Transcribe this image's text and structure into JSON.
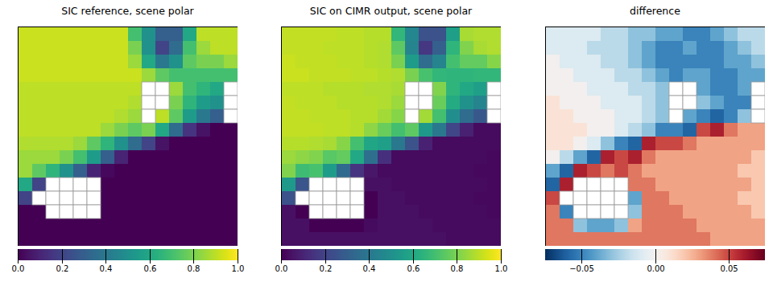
{
  "chart_data": [
    {
      "type": "heatmap",
      "title": "SIC reference, scene polar",
      "color": "viridis",
      "tick_labels": false,
      "colorbar": {
        "range": [
          0,
          1
        ],
        "ticks": [
          {
            "value": 0,
            "label": "0.0"
          },
          {
            "value": 0.2,
            "label": "0.2"
          },
          {
            "value": 0.4,
            "label": "0.4"
          },
          {
            "value": 0.6,
            "label": "0.6"
          },
          {
            "value": 0.8,
            "label": "0.8"
          },
          {
            "value": 1,
            "label": "1.0"
          }
        ]
      },
      "cells": [
        [
          0.92,
          0.92,
          0.92,
          0.92,
          0.92,
          0.92,
          0.92,
          0.92,
          0.7,
          0.5,
          0.3,
          0.3,
          0.6,
          0.9,
          0.9,
          0.9
        ],
        [
          0.92,
          0.92,
          0.92,
          0.92,
          0.92,
          0.92,
          0.92,
          0.92,
          0.8,
          0.5,
          0.2,
          0.35,
          0.7,
          0.85,
          0.9,
          0.9
        ],
        [
          0.92,
          0.92,
          0.92,
          0.92,
          0.92,
          0.92,
          0.92,
          0.92,
          0.85,
          0.6,
          0.4,
          0.5,
          0.75,
          0.8,
          0.8,
          0.85
        ],
        [
          0.92,
          0.92,
          0.92,
          0.92,
          0.92,
          0.92,
          0.92,
          0.92,
          0.92,
          0.85,
          0.75,
          0.7,
          0.7,
          0.7,
          0.7,
          0.7
        ],
        [
          0.9,
          0.9,
          0.9,
          0.9,
          0.9,
          0.9,
          0.9,
          0.9,
          0.9,
          null,
          null,
          0.85,
          0.7,
          0.65,
          0.6,
          null
        ],
        [
          0.9,
          0.9,
          0.9,
          0.9,
          0.9,
          0.9,
          0.9,
          0.9,
          0.88,
          null,
          null,
          0.8,
          0.65,
          0.55,
          0.5,
          null
        ],
        [
          0.9,
          0.9,
          0.9,
          0.9,
          0.9,
          0.9,
          0.9,
          0.88,
          0.85,
          null,
          0.9,
          0.75,
          0.55,
          0.4,
          0.3,
          null
        ],
        [
          0.9,
          0.9,
          0.9,
          0.9,
          0.9,
          0.9,
          0.85,
          0.8,
          0.75,
          0.8,
          0.6,
          0.35,
          0.15,
          0.05,
          0,
          0
        ],
        [
          0.88,
          0.88,
          0.88,
          0.88,
          0.85,
          0.75,
          0.65,
          0.5,
          0.35,
          0.2,
          0.05,
          0,
          0,
          0,
          0,
          0
        ],
        [
          0.85,
          0.85,
          0.85,
          0.8,
          0.7,
          0.55,
          0.3,
          0.1,
          0,
          0,
          0,
          0,
          0,
          0,
          0,
          0
        ],
        [
          0.85,
          0.75,
          0.65,
          0.5,
          0.3,
          0.1,
          0.02,
          0,
          0,
          0,
          0,
          0,
          0,
          0,
          0,
          0
        ],
        [
          0.6,
          0.2,
          null,
          null,
          null,
          null,
          0,
          0,
          0,
          0,
          0,
          0,
          0,
          0,
          0,
          0
        ],
        [
          0.2,
          null,
          null,
          null,
          null,
          null,
          0,
          0,
          0,
          0,
          0,
          0,
          0,
          0,
          0,
          0
        ],
        [
          0,
          0,
          null,
          null,
          null,
          null,
          0,
          0,
          0,
          0,
          0,
          0,
          0,
          0,
          0,
          0
        ],
        [
          0,
          0,
          0,
          0,
          0,
          0,
          0,
          0,
          0,
          0,
          0,
          0,
          0,
          0,
          0,
          0
        ],
        [
          0,
          0,
          0,
          0,
          0,
          0,
          0,
          0,
          0,
          0,
          0,
          0,
          0,
          0,
          0,
          0
        ]
      ]
    },
    {
      "type": "heatmap",
      "title": "SIC on CIMR output, scene polar",
      "color": "viridis",
      "tick_labels": false,
      "colorbar": {
        "range": [
          0,
          1
        ],
        "ticks": [
          {
            "value": 0,
            "label": "0.0"
          },
          {
            "value": 0.2,
            "label": "0.2"
          },
          {
            "value": 0.4,
            "label": "0.4"
          },
          {
            "value": 0.6,
            "label": "0.6"
          },
          {
            "value": 0.8,
            "label": "0.8"
          },
          {
            "value": 1,
            "label": "1.0"
          }
        ]
      },
      "cells": [
        [
          0.91,
          0.91,
          0.91,
          0.91,
          0.9,
          0.9,
          0.89,
          0.89,
          0.66,
          0.46,
          0.25,
          0.25,
          0.56,
          0.87,
          0.88,
          0.88
        ],
        [
          0.91,
          0.91,
          0.91,
          0.9,
          0.9,
          0.9,
          0.89,
          0.88,
          0.75,
          0.45,
          0.16,
          0.3,
          0.65,
          0.81,
          0.87,
          0.88
        ],
        [
          0.92,
          0.91,
          0.91,
          0.91,
          0.9,
          0.9,
          0.89,
          0.88,
          0.8,
          0.55,
          0.35,
          0.45,
          0.7,
          0.76,
          0.76,
          0.82
        ],
        [
          0.92,
          0.92,
          0.91,
          0.91,
          0.91,
          0.9,
          0.9,
          0.89,
          0.88,
          0.8,
          0.71,
          0.66,
          0.65,
          0.65,
          0.66,
          0.66
        ],
        [
          0.9,
          0.9,
          0.9,
          0.89,
          0.89,
          0.89,
          0.88,
          0.88,
          0.87,
          null,
          null,
          0.81,
          0.65,
          0.6,
          0.56,
          null
        ],
        [
          0.91,
          0.9,
          0.9,
          0.9,
          0.89,
          0.89,
          0.89,
          0.88,
          0.85,
          null,
          null,
          0.77,
          0.61,
          0.5,
          0.45,
          null
        ],
        [
          0.91,
          0.91,
          0.9,
          0.9,
          0.9,
          0.89,
          0.89,
          0.86,
          0.82,
          null,
          0.86,
          0.7,
          0.49,
          0.35,
          0.27,
          null
        ],
        [
          0.91,
          0.91,
          0.91,
          0.9,
          0.9,
          0.89,
          0.83,
          0.77,
          0.7,
          0.75,
          0.54,
          0.4,
          0.21,
          0.09,
          0.03,
          0.03
        ],
        [
          0.89,
          0.89,
          0.88,
          0.87,
          0.82,
          0.7,
          0.59,
          0.56,
          0.4,
          0.25,
          0.09,
          0.03,
          0.03,
          0.03,
          0.03,
          0.03
        ],
        [
          0.85,
          0.83,
          0.81,
          0.74,
          0.76,
          0.6,
          0.36,
          0.14,
          0.03,
          0.03,
          0.03,
          0.03,
          0.03,
          0.03,
          0.03,
          0.02
        ],
        [
          0.81,
          0.69,
          0.71,
          0.55,
          0.34,
          0.15,
          0.06,
          0.03,
          0.03,
          0.03,
          0.03,
          0.03,
          0.03,
          0.03,
          0.02,
          0.02
        ],
        [
          0.54,
          0.26,
          null,
          null,
          null,
          null,
          0.04,
          0.04,
          0.03,
          0.03,
          0.03,
          0.03,
          0.03,
          0.03,
          0.03,
          0.02
        ],
        [
          0.25,
          null,
          null,
          null,
          null,
          null,
          0,
          0.04,
          0.04,
          0.03,
          0.03,
          0.03,
          0.03,
          0.03,
          0.02,
          0.02
        ],
        [
          0.04,
          0,
          null,
          null,
          null,
          null,
          0,
          0.04,
          0.04,
          0.04,
          0.03,
          0.03,
          0.03,
          0.03,
          0.03,
          0.02
        ],
        [
          0.04,
          0.04,
          0,
          0,
          0,
          0,
          0.03,
          0.04,
          0.04,
          0.04,
          0.04,
          0.03,
          0.03,
          0.03,
          0.03,
          0.03
        ],
        [
          0.04,
          0.04,
          0.04,
          0.04,
          0.04,
          0.04,
          0.04,
          0.04,
          0.04,
          0.04,
          0.04,
          0.04,
          0.03,
          0.03,
          0.03,
          0.03
        ]
      ]
    },
    {
      "type": "heatmap",
      "title": "difference",
      "color": "RdBu_r",
      "tick_labels": false,
      "colorbar": {
        "range": [
          -0.075,
          0.075
        ],
        "ticks": [
          {
            "value": -0.05,
            "label": "−0.05"
          },
          {
            "value": 0,
            "label": "0.00"
          },
          {
            "value": 0.05,
            "label": "0.05"
          }
        ]
      },
      "cells": [
        [
          -0.01,
          -0.01,
          -0.01,
          -0.01,
          -0.02,
          -0.02,
          -0.03,
          -0.03,
          -0.04,
          -0.04,
          -0.05,
          -0.05,
          -0.04,
          -0.03,
          -0.02,
          -0.02
        ],
        [
          -0.01,
          -0.01,
          -0.01,
          -0.02,
          -0.02,
          -0.02,
          -0.03,
          -0.04,
          -0.05,
          -0.05,
          -0.04,
          -0.05,
          -0.05,
          -0.04,
          -0.03,
          -0.02
        ],
        [
          0,
          -0.01,
          -0.01,
          -0.01,
          -0.02,
          -0.02,
          -0.03,
          -0.04,
          -0.05,
          -0.05,
          -0.05,
          -0.05,
          -0.05,
          -0.04,
          -0.04,
          -0.03
        ],
        [
          0,
          0,
          -0.01,
          -0.01,
          -0.01,
          -0.02,
          -0.02,
          -0.03,
          -0.04,
          -0.05,
          -0.04,
          -0.04,
          -0.05,
          -0.05,
          -0.04,
          -0.04
        ],
        [
          0,
          0,
          0,
          -0.01,
          -0.01,
          -0.01,
          -0.02,
          -0.02,
          -0.03,
          null,
          null,
          -0.04,
          -0.05,
          -0.05,
          -0.04,
          null
        ],
        [
          0.01,
          0,
          0,
          0,
          -0.01,
          -0.01,
          -0.01,
          -0.02,
          -0.03,
          null,
          null,
          -0.03,
          -0.04,
          -0.05,
          -0.05,
          null
        ],
        [
          0.01,
          0.01,
          0,
          0,
          0,
          -0.01,
          -0.01,
          -0.02,
          -0.03,
          null,
          -0.04,
          -0.05,
          -0.06,
          -0.05,
          -0.03,
          null
        ],
        [
          0.01,
          0.01,
          0.01,
          0,
          0,
          -0.01,
          -0.02,
          -0.03,
          -0.05,
          -0.05,
          -0.06,
          0.05,
          0.06,
          0.04,
          0.03,
          0.03
        ],
        [
          0.01,
          0.01,
          0,
          -0.01,
          -0.03,
          -0.05,
          -0.06,
          0.06,
          0.05,
          0.05,
          0.04,
          0.03,
          0.03,
          0.03,
          0.03,
          0.03
        ],
        [
          0,
          -0.02,
          -0.04,
          -0.06,
          0.06,
          0.05,
          0.06,
          0.04,
          0.03,
          0.03,
          0.03,
          0.03,
          0.03,
          0.03,
          0.03,
          0.02
        ],
        [
          -0.04,
          -0.06,
          0.06,
          0.05,
          0.04,
          0.05,
          0.04,
          0.03,
          0.03,
          0.03,
          0.03,
          0.03,
          0.03,
          0.03,
          0.02,
          0.02
        ],
        [
          -0.06,
          0.06,
          null,
          null,
          null,
          null,
          0.04,
          0.04,
          0.03,
          0.03,
          0.03,
          0.03,
          0.03,
          0.03,
          0.03,
          0.02
        ],
        [
          0.05,
          null,
          null,
          null,
          null,
          null,
          -0.04,
          0.04,
          0.04,
          0.03,
          0.03,
          0.03,
          0.03,
          0.03,
          0.02,
          0.02
        ],
        [
          0.04,
          -0.05,
          null,
          null,
          null,
          null,
          -0.03,
          0.04,
          0.04,
          0.04,
          0.03,
          0.03,
          0.03,
          0.03,
          0.03,
          0.02
        ],
        [
          0.04,
          0.04,
          -0.03,
          -0.04,
          -0.04,
          -0.03,
          0.03,
          0.04,
          0.04,
          0.04,
          0.04,
          0.03,
          0.03,
          0.03,
          0.03,
          0.03
        ],
        [
          0.04,
          0.04,
          0.04,
          0.04,
          0.04,
          0.04,
          0.04,
          0.04,
          0.04,
          0.04,
          0.04,
          0.04,
          0.03,
          0.03,
          0.03,
          0.03
        ]
      ]
    }
  ]
}
